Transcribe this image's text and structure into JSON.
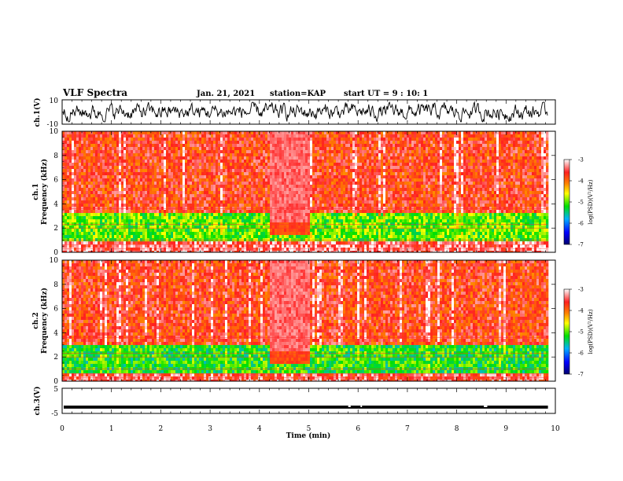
{
  "header": {
    "title": "VLF Spectra",
    "date": "Jan. 21, 2021",
    "station": "station=KAP",
    "start_ut": "start UT = 9 : 10: 1"
  },
  "colors": {
    "background": "#ffffff",
    "axis": "#000000",
    "colormap": [
      "#000070",
      "#0000ff",
      "#00b0ff",
      "#00e000",
      "#ffff00",
      "#ff8000",
      "#ff2020",
      "#ffffff"
    ]
  },
  "chart_data": [
    {
      "id": "ch1-waveform",
      "type": "line",
      "ylabel": "ch.1(V)",
      "ylim": [
        -10,
        10
      ],
      "yticks": [
        "10",
        "-10"
      ],
      "xlim": [
        0,
        10
      ],
      "description_values": {
        "baseline": 0,
        "range": [
          -8,
          8
        ],
        "data_end_min": 9.85
      }
    },
    {
      "id": "ch1-spectrogram",
      "type": "heatmap",
      "ylabel_line1": "ch.1",
      "ylabel_line2": "Frequency (kHz)",
      "ylim": [
        0,
        10
      ],
      "yticks": [
        "0",
        "2",
        "4",
        "6",
        "8",
        "10"
      ],
      "xlim": [
        0,
        10
      ],
      "colorbar": {
        "label": "log(PSD)(V²/Hz)",
        "ticks": [
          "-3",
          "-4",
          "-5",
          "-6",
          "-7"
        ],
        "range": [
          -7,
          -3
        ]
      },
      "bands": [
        {
          "from_khz": 0.0,
          "to_khz": 1.0,
          "level": -3.4
        },
        {
          "from_khz": 1.0,
          "to_khz": 3.2,
          "level": -5.0
        },
        {
          "from_khz": 3.2,
          "to_khz": 10.0,
          "level": -3.7
        }
      ],
      "quiet_interval_min": [
        4.2,
        5.0
      ],
      "data_end_min": 9.85
    },
    {
      "id": "ch2-spectrogram",
      "type": "heatmap",
      "ylabel_line1": "ch.2",
      "ylabel_line2": "Frequency (kHz)",
      "ylim": [
        0,
        10
      ],
      "yticks": [
        "0",
        "2",
        "4",
        "6",
        "8",
        "10"
      ],
      "xlim": [
        0,
        10
      ],
      "colorbar": {
        "label": "log(PSD)(V²/Hz)",
        "ticks": [
          "-3",
          "-4",
          "-5",
          "-6",
          "-7"
        ],
        "range": [
          -7,
          -3
        ]
      },
      "bands": [
        {
          "from_khz": 0.0,
          "to_khz": 0.6,
          "level": -3.5
        },
        {
          "from_khz": 0.6,
          "to_khz": 3.0,
          "level": -5.2
        },
        {
          "from_khz": 3.0,
          "to_khz": 10.0,
          "level": -3.7
        }
      ],
      "quiet_interval_min": [
        4.2,
        5.0
      ],
      "data_end_min": 9.85
    },
    {
      "id": "ch3-waveform",
      "type": "line",
      "ylabel": "ch.3(V)",
      "ylim": [
        -5,
        5
      ],
      "yticks": [
        "5",
        "-5"
      ],
      "xlim": [
        0,
        10
      ],
      "xlabel": "Time (min)",
      "xticks": [
        "0",
        "1",
        "2",
        "3",
        "4",
        "5",
        "6",
        "7",
        "8",
        "9",
        "10"
      ],
      "description_values": {
        "baseline": -2.5,
        "band_width_v": 1.2,
        "data_end_min": 9.85
      }
    }
  ]
}
